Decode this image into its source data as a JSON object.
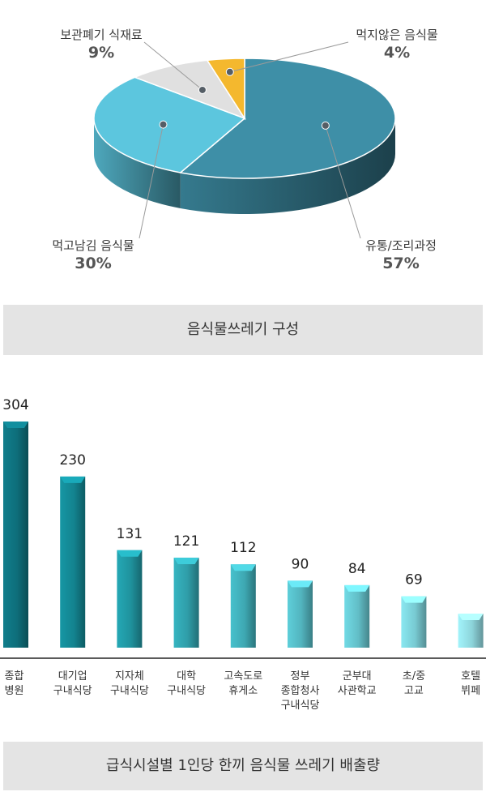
{
  "chart_data": [
    {
      "type": "pie",
      "caption": "음식물쓰레기 구성",
      "slices": [
        {
          "label": "유통/조리과정",
          "value": 57,
          "value_label": "57%",
          "color": "#3e8fa7"
        },
        {
          "label": "먹고남김 음식물",
          "value": 30,
          "value_label": "30%",
          "color": "#5cc6de"
        },
        {
          "label": "보관폐기 식재료",
          "value": 9,
          "value_label": "9%",
          "color": "#e0e0e0"
        },
        {
          "label": "먹지않은 음식물",
          "value": 4,
          "value_label": "4%",
          "color": "#f4b82e"
        }
      ]
    },
    {
      "type": "bar",
      "caption": "급식시설별 1인당 한끼 음식물 쓰레기 배출량",
      "categories": [
        [
          "종합",
          "병원"
        ],
        [
          "대기업",
          "구내식당"
        ],
        [
          "지자체",
          "구내식당"
        ],
        [
          "대학",
          "구내식당"
        ],
        [
          "고속도로",
          "휴게소"
        ],
        [
          "정부",
          "종합청사",
          "구내식당"
        ],
        [
          "군부대",
          "사관학교"
        ],
        [
          "초/중",
          "고교"
        ],
        [
          "호텔",
          "뷔페"
        ]
      ],
      "values": [
        304,
        230,
        131,
        121,
        112,
        90,
        84,
        69,
        null
      ],
      "value_labels": [
        "304",
        "230",
        "131",
        "121",
        "112",
        "90",
        "84",
        "69",
        ""
      ],
      "colors": [
        "#0e6e7a",
        "#13838f",
        "#1f929d",
        "#2f9da8",
        "#3ea8b2",
        "#52b4be",
        "#62bec7",
        "#78cad2",
        "#8dd4da"
      ]
    }
  ]
}
